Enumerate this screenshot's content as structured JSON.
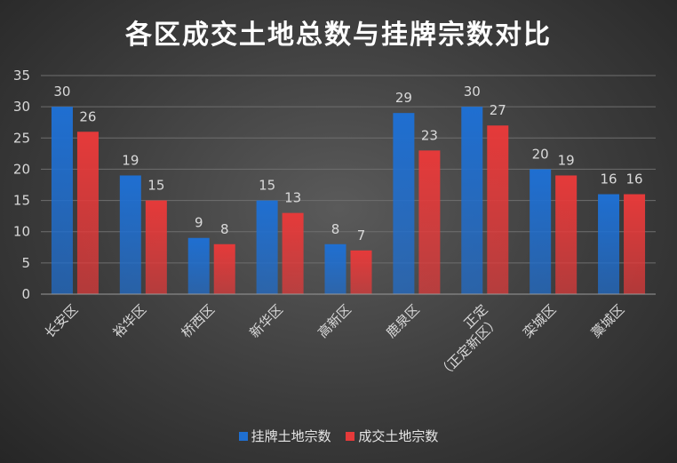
{
  "chart_data": {
    "type": "bar",
    "title": "各区成交土地总数与挂牌宗数对比",
    "categories": [
      "长安区",
      "裕华区",
      "桥西区",
      "新华区",
      "高新区",
      "鹿泉区",
      "正定\n（正定新区）",
      "栾城区",
      "藁城区"
    ],
    "series": [
      {
        "name": "挂牌土地宗数",
        "color": "#1f6fd1",
        "values": [
          30,
          19,
          9,
          15,
          8,
          29,
          30,
          20,
          16
        ]
      },
      {
        "name": "成交土地宗数",
        "color": "#e53a3a",
        "values": [
          26,
          15,
          8,
          13,
          7,
          23,
          27,
          19,
          16
        ]
      }
    ],
    "ylim": [
      0,
      35
    ],
    "yticks": [
      0,
      5,
      10,
      15,
      20,
      25,
      30,
      35
    ],
    "grid": true,
    "legend_position": "bottom"
  }
}
